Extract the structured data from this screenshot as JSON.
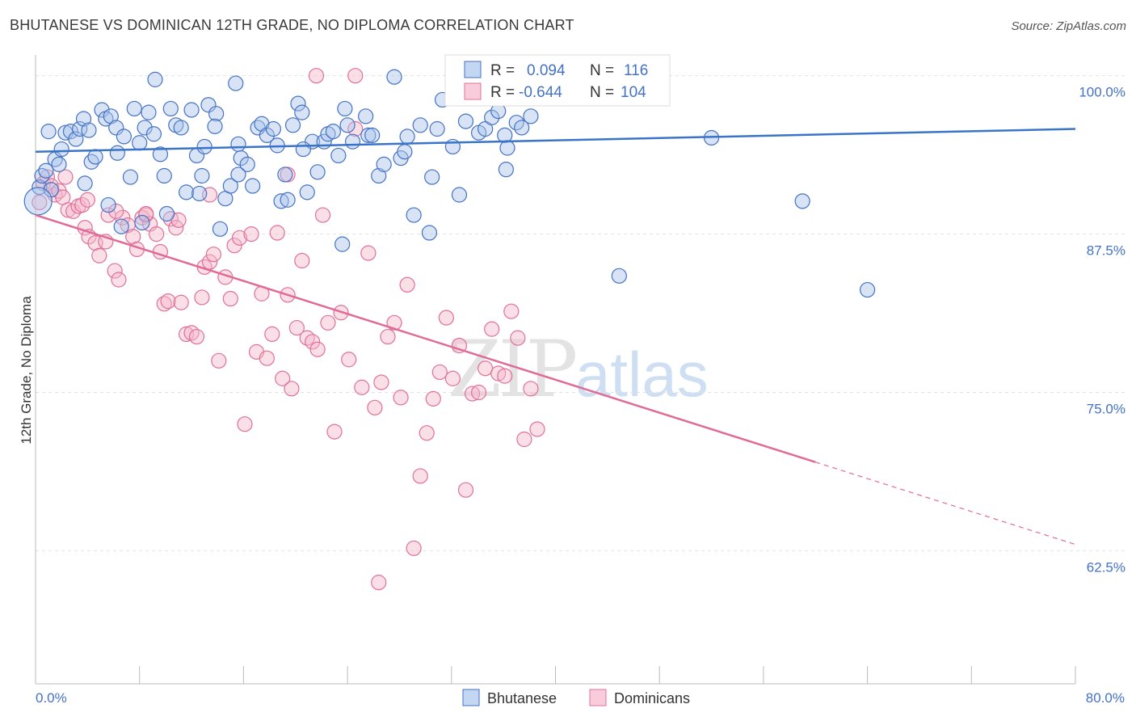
{
  "title": "BHUTANESE VS DOMINICAN 12TH GRADE, NO DIPLOMA CORRELATION CHART",
  "source": "Source: ZipAtlas.com",
  "watermark": {
    "zip": "ZIP",
    "atlas": "atlas"
  },
  "colors": {
    "blue": "#4472c4",
    "blue_fill": "#a9c4ec",
    "blue_line": "#3a74c9",
    "pink": "#e0709a",
    "pink_fill": "#f5b7ca",
    "pink_line": "#df6b96"
  },
  "legend": {
    "rows": [
      {
        "r_label": "R =",
        "r_value": "0.094",
        "n_label": "N =",
        "n_value": "116"
      },
      {
        "r_label": "R =",
        "r_value": "-0.644",
        "n_label": "N =",
        "n_value": "104"
      }
    ]
  },
  "bottom_legend": [
    "Bhutanese",
    "Dominicans"
  ],
  "chart_data": {
    "type": "scatter",
    "xlabel": "",
    "ylabel": "12th Grade, No Diploma",
    "xlim": [
      0,
      80
    ],
    "ylim": [
      52,
      101
    ],
    "x_tick_labels": [
      "0.0%",
      "80.0%"
    ],
    "y_ticks": [
      100,
      87.5,
      75,
      62.5
    ],
    "y_tick_labels": [
      "100.0%",
      "87.5%",
      "75.0%",
      "62.5%"
    ],
    "grid": true,
    "series": [
      {
        "name": "Bhutanese",
        "r": 0.094,
        "n": 116,
        "trend": {
          "x": [
            0,
            80
          ],
          "y": [
            94.0,
            95.8
          ]
        },
        "points": [
          [
            0.3,
            91.2
          ],
          [
            0.5,
            92.1
          ],
          [
            0.8,
            92.5
          ],
          [
            1.2,
            91.0
          ],
          [
            1.5,
            93.4
          ],
          [
            1.8,
            93.0
          ],
          [
            2.0,
            94.2
          ],
          [
            2.3,
            95.5
          ],
          [
            2.7,
            95.6
          ],
          [
            3.1,
            95.0
          ],
          [
            3.4,
            95.8
          ],
          [
            3.7,
            96.6
          ],
          [
            4.1,
            95.7
          ],
          [
            4.3,
            93.2
          ],
          [
            4.6,
            93.6
          ],
          [
            5.1,
            97.3
          ],
          [
            5.4,
            96.6
          ],
          [
            5.8,
            96.8
          ],
          [
            6.2,
            95.9
          ],
          [
            6.3,
            93.9
          ],
          [
            6.8,
            95.2
          ],
          [
            7.3,
            92.0
          ],
          [
            7.6,
            97.4
          ],
          [
            8.0,
            94.7
          ],
          [
            8.4,
            95.9
          ],
          [
            8.7,
            97.1
          ],
          [
            9.1,
            95.4
          ],
          [
            9.6,
            93.8
          ],
          [
            9.9,
            92.1
          ],
          [
            10.4,
            97.4
          ],
          [
            10.8,
            96.1
          ],
          [
            11.2,
            95.9
          ],
          [
            11.6,
            90.8
          ],
          [
            12.0,
            97.3
          ],
          [
            12.4,
            93.7
          ],
          [
            12.6,
            90.7
          ],
          [
            13.0,
            94.4
          ],
          [
            13.3,
            97.7
          ],
          [
            13.9,
            97.0
          ],
          [
            13.8,
            96.0
          ],
          [
            14.2,
            87.9
          ],
          [
            14.6,
            90.3
          ],
          [
            15.0,
            91.3
          ],
          [
            15.4,
            99.4
          ],
          [
            15.6,
            94.6
          ],
          [
            15.8,
            93.5
          ],
          [
            16.3,
            93.0
          ],
          [
            16.7,
            91.3
          ],
          [
            17.1,
            95.9
          ],
          [
            17.4,
            96.2
          ],
          [
            17.8,
            95.3
          ],
          [
            18.3,
            95.8
          ],
          [
            18.6,
            94.5
          ],
          [
            18.9,
            90.1
          ],
          [
            19.2,
            92.2
          ],
          [
            19.4,
            90.2
          ],
          [
            19.8,
            96.1
          ],
          [
            20.2,
            97.8
          ],
          [
            20.5,
            97.1
          ],
          [
            20.9,
            90.8
          ],
          [
            21.3,
            94.8
          ],
          [
            21.7,
            92.4
          ],
          [
            22.2,
            94.8
          ],
          [
            22.5,
            95.4
          ],
          [
            22.9,
            95.6
          ],
          [
            23.3,
            93.7
          ],
          [
            23.6,
            86.7
          ],
          [
            24.0,
            96.1
          ],
          [
            24.4,
            94.8
          ],
          [
            25.4,
            96.8
          ],
          [
            25.6,
            95.3
          ],
          [
            25.9,
            95.3
          ],
          [
            26.4,
            92.1
          ],
          [
            26.8,
            93.0
          ],
          [
            27.6,
            99.9
          ],
          [
            28.1,
            93.5
          ],
          [
            28.6,
            95.2
          ],
          [
            29.1,
            89.0
          ],
          [
            29.6,
            96.1
          ],
          [
            30.3,
            87.6
          ],
          [
            30.5,
            92.0
          ],
          [
            30.9,
            95.8
          ],
          [
            31.3,
            98.1
          ],
          [
            32.1,
            94.4
          ],
          [
            32.6,
            90.6
          ],
          [
            33.1,
            96.4
          ],
          [
            33.6,
            98.4
          ],
          [
            34.1,
            95.5
          ],
          [
            34.6,
            95.8
          ],
          [
            35.1,
            96.7
          ],
          [
            35.6,
            97.2
          ],
          [
            36.1,
            95.3
          ],
          [
            36.3,
            94.3
          ],
          [
            37.0,
            96.3
          ],
          [
            37.4,
            95.9
          ],
          [
            38.1,
            96.8
          ],
          [
            38.6,
            98.5
          ],
          [
            39.6,
            99.8
          ],
          [
            40.6,
            98.2
          ],
          [
            44.9,
            84.2
          ],
          [
            52.0,
            95.1
          ],
          [
            59.0,
            90.1
          ],
          [
            64.0,
            83.1
          ],
          [
            23.8,
            97.4
          ],
          [
            9.2,
            99.7
          ],
          [
            5.6,
            89.8
          ],
          [
            8.2,
            88.4
          ],
          [
            10.1,
            89.1
          ],
          [
            15.6,
            92.2
          ],
          [
            20.6,
            94.2
          ],
          [
            28.4,
            94.0
          ],
          [
            36.2,
            92.6
          ],
          [
            1.0,
            95.6
          ],
          [
            3.8,
            91.5
          ],
          [
            6.6,
            88.1
          ],
          [
            12.8,
            92.1
          ]
        ]
      },
      {
        "name": "Dominicans",
        "r": -0.644,
        "n": 104,
        "trend": {
          "x": [
            0,
            60
          ],
          "y": [
            89.0,
            69.5
          ]
        },
        "trend_dashed": {
          "x": [
            60,
            80
          ],
          "y": [
            69.5,
            63.0
          ]
        },
        "points": [
          [
            0.3,
            90.0
          ],
          [
            0.6,
            91.5
          ],
          [
            0.9,
            92.0
          ],
          [
            1.2,
            91.3
          ],
          [
            1.5,
            90.6
          ],
          [
            1.8,
            90.9
          ],
          [
            2.1,
            90.4
          ],
          [
            2.5,
            89.4
          ],
          [
            2.9,
            89.3
          ],
          [
            3.3,
            89.7
          ],
          [
            3.6,
            89.8
          ],
          [
            3.8,
            88.0
          ],
          [
            4.1,
            87.3
          ],
          [
            4.6,
            86.8
          ],
          [
            4.9,
            85.8
          ],
          [
            5.4,
            86.9
          ],
          [
            5.6,
            89.0
          ],
          [
            6.1,
            84.6
          ],
          [
            6.4,
            83.9
          ],
          [
            6.7,
            88.8
          ],
          [
            7.1,
            88.2
          ],
          [
            7.5,
            87.3
          ],
          [
            7.8,
            86.3
          ],
          [
            8.2,
            88.8
          ],
          [
            8.5,
            89.0
          ],
          [
            8.8,
            88.3
          ],
          [
            9.3,
            87.5
          ],
          [
            9.6,
            86.1
          ],
          [
            9.9,
            82.0
          ],
          [
            10.2,
            82.2
          ],
          [
            10.4,
            88.7
          ],
          [
            10.8,
            88.0
          ],
          [
            11.2,
            82.1
          ],
          [
            11.6,
            79.6
          ],
          [
            12.0,
            79.7
          ],
          [
            12.4,
            79.4
          ],
          [
            12.8,
            82.5
          ],
          [
            13.0,
            84.9
          ],
          [
            13.4,
            85.3
          ],
          [
            13.7,
            85.9
          ],
          [
            14.1,
            77.5
          ],
          [
            14.6,
            84.1
          ],
          [
            15.0,
            82.4
          ],
          [
            15.3,
            86.6
          ],
          [
            15.7,
            87.2
          ],
          [
            16.1,
            72.5
          ],
          [
            16.6,
            87.5
          ],
          [
            17.0,
            78.2
          ],
          [
            17.4,
            82.8
          ],
          [
            17.8,
            77.7
          ],
          [
            18.2,
            79.6
          ],
          [
            18.6,
            87.6
          ],
          [
            19.0,
            76.1
          ],
          [
            19.4,
            82.7
          ],
          [
            19.7,
            75.3
          ],
          [
            20.1,
            80.1
          ],
          [
            20.5,
            85.4
          ],
          [
            20.9,
            79.3
          ],
          [
            21.3,
            79.0
          ],
          [
            21.7,
            78.4
          ],
          [
            22.1,
            89.0
          ],
          [
            22.5,
            80.5
          ],
          [
            23.0,
            71.9
          ],
          [
            23.5,
            81.3
          ],
          [
            24.1,
            77.6
          ],
          [
            24.6,
            95.8
          ],
          [
            25.1,
            75.4
          ],
          [
            25.6,
            86.0
          ],
          [
            26.1,
            73.8
          ],
          [
            26.6,
            75.8
          ],
          [
            27.1,
            79.4
          ],
          [
            27.6,
            80.5
          ],
          [
            28.1,
            74.6
          ],
          [
            28.6,
            83.5
          ],
          [
            29.1,
            62.7
          ],
          [
            29.6,
            68.4
          ],
          [
            30.1,
            71.8
          ],
          [
            30.6,
            74.5
          ],
          [
            31.1,
            76.6
          ],
          [
            31.6,
            80.9
          ],
          [
            32.1,
            76.1
          ],
          [
            32.6,
            78.7
          ],
          [
            33.1,
            67.3
          ],
          [
            33.6,
            74.9
          ],
          [
            34.1,
            75.0
          ],
          [
            34.6,
            76.9
          ],
          [
            35.1,
            80.0
          ],
          [
            35.6,
            76.5
          ],
          [
            36.1,
            76.3
          ],
          [
            36.6,
            81.4
          ],
          [
            37.1,
            79.3
          ],
          [
            37.6,
            71.3
          ],
          [
            38.1,
            75.3
          ],
          [
            38.6,
            72.1
          ],
          [
            21.6,
            100.0
          ],
          [
            24.6,
            100.0
          ],
          [
            26.4,
            60.0
          ],
          [
            19.4,
            92.2
          ],
          [
            8.5,
            89.1
          ],
          [
            13.4,
            90.6
          ],
          [
            2.3,
            92.0
          ],
          [
            4.0,
            90.2
          ],
          [
            6.2,
            89.3
          ],
          [
            11.0,
            88.6
          ]
        ]
      }
    ]
  }
}
